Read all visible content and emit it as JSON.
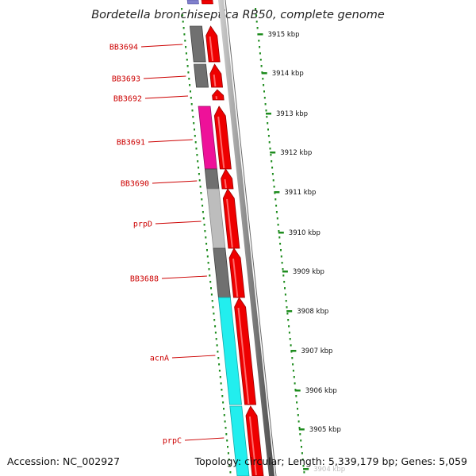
{
  "title": "Bordetella bronchiseptica RB50, complete genome",
  "footer": {
    "accession": "Accession: NC_002927",
    "summary": "Topology: circular; Length: 5,339,179 bp; Genes: 5,059"
  },
  "genes": [
    {
      "label": "BB3694",
      "fill": "#707070",
      "edge": "#3f3f3f"
    },
    {
      "label": "BB3693",
      "fill": "#707070",
      "edge": "#3f3f3f"
    },
    {
      "label": "BB3692",
      "fill": "#ffffff",
      "edge": "#ffffff"
    },
    {
      "label": "BB3691",
      "fill": "#ee1199",
      "edge": "#991166"
    },
    {
      "label": "BB3690",
      "fill": "#707070",
      "edge": "#3f3f3f"
    },
    {
      "label": "prpD",
      "fill": "#bdbdbd",
      "edge": "#8a8a8a"
    },
    {
      "label": "BB3688",
      "fill": "#707070",
      "edge": "#3f3f3f"
    },
    {
      "label": "acnA",
      "fill": "#22eeee",
      "edge": "#11aaaa"
    },
    {
      "label": "prpC",
      "fill": "#22eeee",
      "edge": "#11aaaa"
    }
  ],
  "position_labels": [
    "3915 kbp",
    "3914 kbp",
    "3913 kbp",
    "3912 kbp",
    "3911 kbp",
    "3910 kbp",
    "3909 kbp",
    "3908 kbp",
    "3907 kbp",
    "3906 kbp",
    "3905 kbp",
    "3904 kbp"
  ],
  "colors": {
    "gene_arrow": "#ee0000",
    "gene_arrow_edge": "#990000",
    "label_text": "#cc0000",
    "tick_green": "#1e8c1e",
    "backbone_gray": "#8c8c8c",
    "top_gene_purple": "#8080cc"
  }
}
